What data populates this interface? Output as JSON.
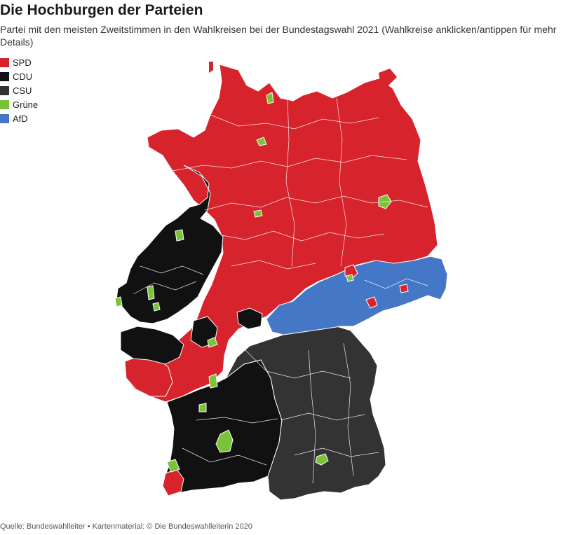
{
  "header": {
    "title": "Die Hochburgen der Parteien",
    "subtitle": "Partei mit den meisten Zweitstimmen in den Wahlkreisen bei der Bundestagswahl 2021 (Wahlkreise anklicken/antippen für mehr Details)"
  },
  "legend": [
    {
      "label": "SPD",
      "color": "#d7232b"
    },
    {
      "label": "CDU",
      "color": "#111111"
    },
    {
      "label": "CSU",
      "color": "#333333"
    },
    {
      "label": "Grüne",
      "color": "#7ac23a"
    },
    {
      "label": "AfD",
      "color": "#4477c5"
    }
  ],
  "footer": {
    "source": "Quelle: Bundeswahlleiter • Kartenmaterial: © Die Bundeswahlleiterin 2020"
  }
}
